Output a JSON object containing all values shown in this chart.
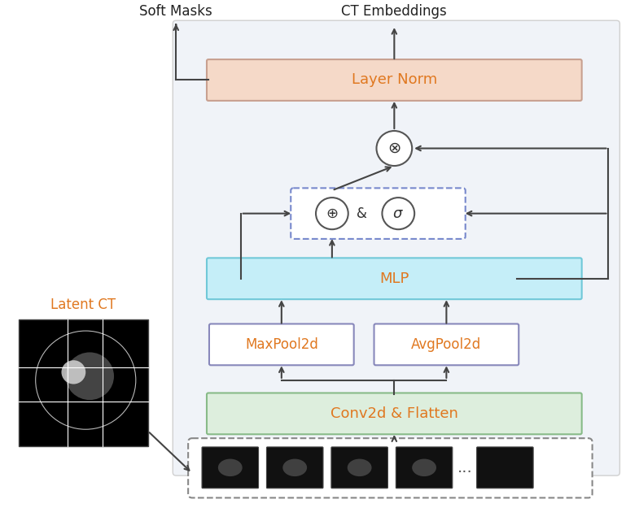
{
  "figure_bg": "#ffffff",
  "panel_bg": "#f0f3f8",
  "layer_norm": {
    "label": "Layer Norm",
    "color": "#f5d9c8",
    "edge": "#c8a090"
  },
  "mlp": {
    "label": "MLP",
    "color": "#c5eef8",
    "edge": "#70c8d8"
  },
  "conv": {
    "label": "Conv2d & Flatten",
    "color": "#ddeedd",
    "edge": "#88bb88"
  },
  "maxpool": {
    "label": "MaxPool2d",
    "color": "#ffffff",
    "edge": "#8888bb"
  },
  "avgpool": {
    "label": "AvgPool2d",
    "color": "#ffffff",
    "edge": "#8888bb"
  },
  "title_soft_masks": "Soft Masks",
  "title_ct_embeddings": "CT Embeddings",
  "title_latent_ct": "Latent CT",
  "arrow_color": "#444444",
  "text_color_orange": "#e07820",
  "text_color_dark": "#333333",
  "dashed_box_color": "#7788cc"
}
